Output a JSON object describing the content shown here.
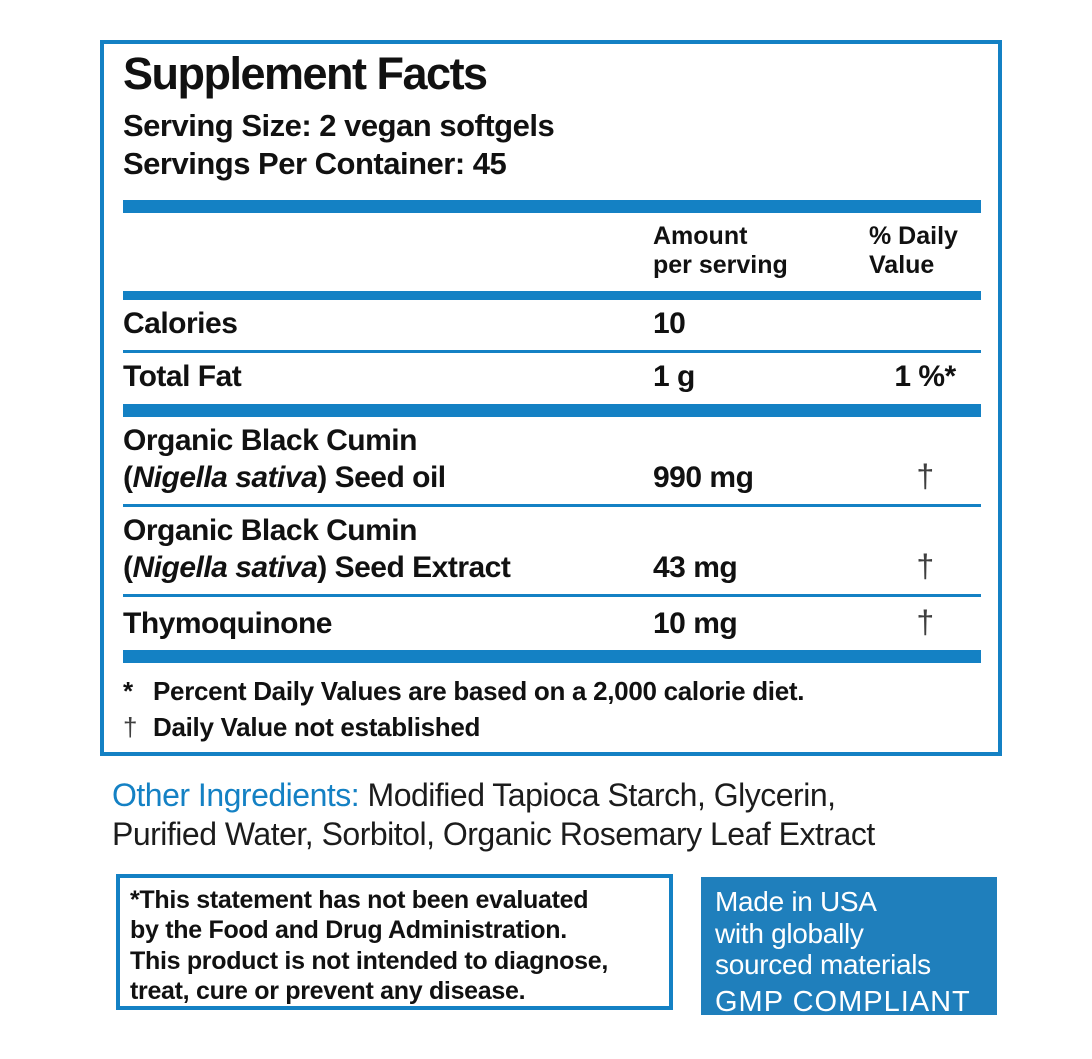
{
  "colors": {
    "blue": "#1481c4",
    "box-blue": "#1f7fbc",
    "ink": "#111111",
    "dagger": "#3f3f3f"
  },
  "panel": {
    "title": "Supplement Facts",
    "serving_size": "Serving Size: 2 vegan softgels",
    "servings_per_container": "Servings Per Container: 45",
    "columns": {
      "amount_line1": "Amount",
      "amount_line2": "per serving",
      "dv_line1": "% Daily",
      "dv_line2": "Value"
    },
    "rows": [
      {
        "name": "Calories",
        "amount": "10",
        "dv": ""
      },
      {
        "name": "Total Fat",
        "amount": "1 g",
        "dv": "1 %*"
      },
      {
        "name_line1": "Organic Black Cumin",
        "paren_open": "(",
        "latin": "Nigella sativa",
        "paren_rest": ") Seed oil",
        "amount": "990 mg",
        "dv": "†"
      },
      {
        "name_line1": "Organic Black Cumin",
        "paren_open": "(",
        "latin": "Nigella sativa",
        "paren_rest": ") Seed Extract",
        "amount": "43 mg",
        "dv": "†"
      },
      {
        "name": "Thymoquinone",
        "amount": "10 mg",
        "dv": "†"
      }
    ],
    "footnotes": [
      {
        "marker": "*",
        "text": "Percent Daily Values are based on a 2,000 calorie diet."
      },
      {
        "marker": "†",
        "text": "Daily Value not established"
      }
    ]
  },
  "other_ingredients": {
    "label": "Other Ingredients:",
    "line1_rest": " Modified Tapioca Starch, Glycerin,",
    "line2": "Purified Water, Sorbitol, Organic Rosemary Leaf Extract"
  },
  "disclaimer": {
    "lines": [
      "*This statement has not been evaluated",
      "by the Food and Drug Administration.",
      "This product is not intended to diagnose,",
      "treat, cure or prevent any disease."
    ]
  },
  "made_in": {
    "lines": [
      "Made in USA",
      "with globally",
      "sourced materials"
    ],
    "gmp": "GMP COMPLIANT"
  }
}
